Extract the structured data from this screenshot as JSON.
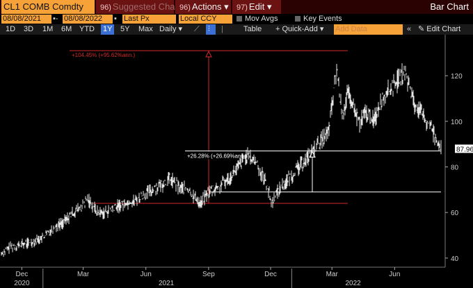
{
  "toolbar": {
    "ticker": "CL1 COMB Comdty",
    "suggested": "Suggested Charts",
    "suggested_key": "96)",
    "actions": "Actions",
    "actions_key": "96)",
    "edit": "Edit",
    "edit_key": "97)",
    "title": "Bar Chart"
  },
  "params": {
    "start_date": "08/08/2021",
    "end_date": "08/08/2022",
    "price_field": "Last Px",
    "currency": "Local CCY",
    "mov_avgs": "Mov Avgs",
    "key_events": "Key Events"
  },
  "ranges": {
    "items": [
      "1D",
      "3D",
      "1M",
      "6M",
      "YTD",
      "1Y",
      "5Y",
      "Max"
    ],
    "selected": "1Y",
    "period": "Daily",
    "table": "Table",
    "quick_add": "Quick-Add",
    "add_data_placeholder": "Add Data",
    "edit_chart": "Edit Chart"
  },
  "chart_data": {
    "type": "line",
    "x_tick_labels": [
      "Dec",
      "Mar",
      "Jun",
      "Sep",
      "Dec",
      "Mar",
      "Jun"
    ],
    "year_labels": [
      "2020",
      "2021",
      "2022"
    ],
    "y_ticks": [
      40,
      60,
      80,
      100,
      120
    ],
    "ylim": [
      36,
      138
    ],
    "last_value_label": "87.96",
    "last_value": 87.96,
    "colors": {
      "line": "#e6e6e6",
      "red_annotation": "#d42a2a",
      "white_annotation": "#ffffff",
      "axis_text": "#cccccc"
    },
    "annotations": [
      {
        "label": "+104.45% (+95.62%ann.)",
        "color": "red",
        "low": 64,
        "high": 131
      },
      {
        "label": "+26.28% (+26.69%ann.)",
        "color": "white",
        "low": 69,
        "high": 87
      }
    ],
    "series": [
      {
        "dates": [
          "2020-11-01",
          "2020-11-15",
          "2020-12-01",
          "2020-12-15",
          "2021-01-01",
          "2021-01-15",
          "2021-02-01",
          "2021-02-15",
          "2021-03-01",
          "2021-03-08",
          "2021-03-22",
          "2021-04-01",
          "2021-04-15",
          "2021-05-01",
          "2021-05-15",
          "2021-06-01",
          "2021-06-15",
          "2021-07-01",
          "2021-07-06",
          "2021-07-20",
          "2021-08-01",
          "2021-08-20",
          "2021-09-01",
          "2021-09-15",
          "2021-10-01",
          "2021-10-15",
          "2021-10-26",
          "2021-11-10",
          "2021-11-26",
          "2021-12-02",
          "2021-12-15",
          "2022-01-01",
          "2022-01-15",
          "2022-02-01",
          "2022-02-15",
          "2022-02-24",
          "2022-03-08",
          "2022-03-16",
          "2022-03-24",
          "2022-04-11",
          "2022-04-20",
          "2022-05-01",
          "2022-05-15",
          "2022-06-01",
          "2022-06-14",
          "2022-06-20",
          "2022-07-01",
          "2022-07-15",
          "2022-07-25",
          "2022-08-05",
          "2022-08-08"
        ],
        "values": [
          42,
          45,
          46,
          47,
          49,
          53,
          56,
          60,
          63,
          66,
          60,
          60,
          62,
          64,
          65,
          68,
          71,
          73,
          75,
          71,
          70,
          64,
          69,
          71,
          75,
          80,
          85,
          82,
          72,
          64,
          71,
          76,
          81,
          87,
          92,
          95,
          123,
          102,
          112,
          99,
          104,
          100,
          111,
          116,
          121,
          118,
          107,
          101,
          97,
          90,
          88
        ]
      }
    ]
  }
}
